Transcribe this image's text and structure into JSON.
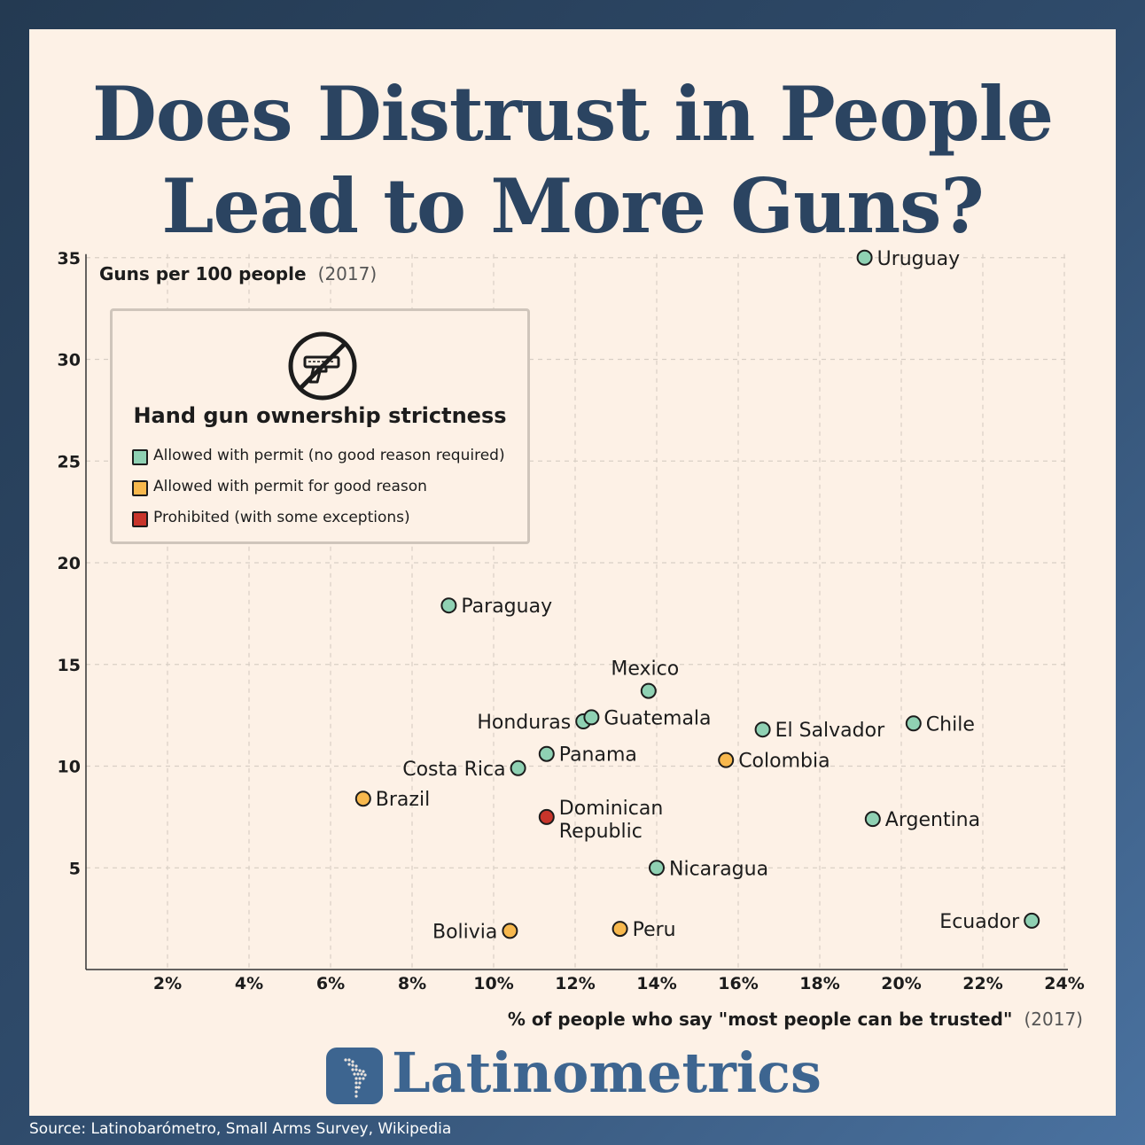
{
  "title_lines": [
    "Does Distrust in People",
    "Lead to More Guns?"
  ],
  "chart_data": {
    "type": "scatter",
    "ylabel": "Guns per 100 people",
    "ylabel_year": "(2017)",
    "xlabel": "% of people who say \"most people can be trusted\"",
    "xlabel_year": "(2017)",
    "xlim": [
      0,
      24
    ],
    "ylim": [
      0,
      35
    ],
    "xticks": [
      2,
      4,
      6,
      8,
      10,
      12,
      14,
      16,
      18,
      20,
      22,
      24
    ],
    "xtick_labels": [
      "2%",
      "4%",
      "6%",
      "8%",
      "10%",
      "12%",
      "14%",
      "16%",
      "18%",
      "20%",
      "22%",
      "24%"
    ],
    "yticks": [
      5,
      10,
      15,
      20,
      25,
      30,
      35
    ],
    "ytick_labels": [
      "5",
      "10",
      "15",
      "20",
      "25",
      "30",
      "35"
    ],
    "grid": true,
    "legend": {
      "title": "Hand gun ownership strictness",
      "placement": "top-left",
      "entries": [
        {
          "key": "permit",
          "label": "Allowed with permit (no good reason required)",
          "color": "#8fd1b3"
        },
        {
          "key": "reason",
          "label": "Allowed with permit for good reason",
          "color": "#f7b84d"
        },
        {
          "key": "prohibited",
          "label": "Prohibited (with some exceptions)",
          "color": "#c7352b"
        }
      ]
    },
    "points": [
      {
        "name": "Uruguay",
        "x": 19.1,
        "y": 35.0,
        "category": "permit"
      },
      {
        "name": "Paraguay",
        "x": 8.9,
        "y": 17.9,
        "category": "permit"
      },
      {
        "name": "Mexico",
        "x": 13.8,
        "y": 13.7,
        "category": "permit"
      },
      {
        "name": "Honduras",
        "x": 12.2,
        "y": 12.2,
        "category": "permit"
      },
      {
        "name": "Guatemala",
        "x": 12.4,
        "y": 12.4,
        "category": "permit"
      },
      {
        "name": "El Salvador",
        "x": 16.6,
        "y": 11.8,
        "category": "permit"
      },
      {
        "name": "Chile",
        "x": 20.3,
        "y": 12.1,
        "category": "permit"
      },
      {
        "name": "Panama",
        "x": 11.3,
        "y": 10.6,
        "category": "permit"
      },
      {
        "name": "Colombia",
        "x": 15.7,
        "y": 10.3,
        "category": "reason"
      },
      {
        "name": "Costa Rica",
        "x": 10.6,
        "y": 9.9,
        "category": "permit"
      },
      {
        "name": "Brazil",
        "x": 6.8,
        "y": 8.4,
        "category": "reason"
      },
      {
        "name": "Dominican Republic",
        "x": 11.3,
        "y": 7.5,
        "category": "prohibited"
      },
      {
        "name": "Argentina",
        "x": 19.3,
        "y": 7.4,
        "category": "permit"
      },
      {
        "name": "Nicaragua",
        "x": 14.0,
        "y": 5.0,
        "category": "permit"
      },
      {
        "name": "Ecuador",
        "x": 23.2,
        "y": 2.4,
        "category": "permit"
      },
      {
        "name": "Bolivia",
        "x": 10.4,
        "y": 1.9,
        "category": "reason"
      },
      {
        "name": "Peru",
        "x": 13.1,
        "y": 2.0,
        "category": "reason"
      }
    ]
  },
  "brand": {
    "name": "Latinometrics",
    "logo_icon": "latin-america-map-icon"
  },
  "source": "Source: Latinobarómetro, Small Arms Survey, Wikipedia"
}
